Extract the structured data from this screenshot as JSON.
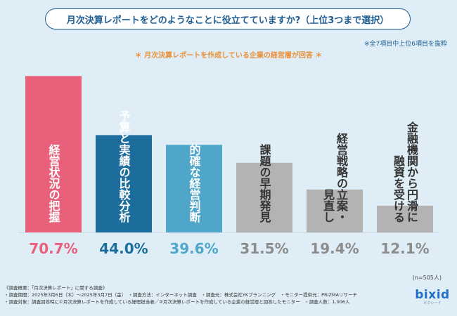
{
  "title": "月次決算レポートをどのようなことに役立てていますか?（上位3つまで選択）",
  "note_items": "※全7項目中上位6項目を抜粋",
  "note_respondents": "＊ 月次決算レポートを作成している企業の経営層が回答 ＊",
  "sample_size": "(n=505人)",
  "footer": [
    "《調査概要：「月次決算レポート」に関する調査》",
    "・調査期間：2025年3月6日（木）〜2025年3月7日（金）　・調査方法：インターネット調査　・調査元：株式会社YKプランニング　・モニター提供元：PRIZMAリサーチ",
    "・調査対象：調査回答時に①月次決算レポートを作成している経理担当者／②月次決算レポートを作成している企業の経営層と回答したモニター　・調査人数：1,006人"
  ],
  "logo": {
    "word": "bixid",
    "sub": "ビクシード"
  },
  "chart_data": {
    "type": "bar",
    "title": "月次決算レポートをどのようなことに役立てていますか?（上位3つまで選択）",
    "unit": "%",
    "ylim": [
      0,
      80
    ],
    "grid": false,
    "categories": [
      "経営状況の把握",
      "予算と実績の比較分析",
      "的確な経営判断",
      "課題の早期発見",
      "経営戦略の立案・見直し",
      "金融機関から円滑に融資を受ける"
    ],
    "category_lines": [
      [
        "経営状況の把握"
      ],
      [
        "予算と実績の比較分析"
      ],
      [
        "的確な経営判断"
      ],
      [
        "課題の早期発見"
      ],
      [
        "経営戦略の立案・",
        "見直し"
      ],
      [
        "金融機関から円滑に",
        "融資を受ける"
      ]
    ],
    "values": [
      70.7,
      44.0,
      39.6,
      31.5,
      19.4,
      12.1
    ],
    "value_labels": [
      "70.7%",
      "44.0%",
      "39.6%",
      "31.5%",
      "19.4%",
      "12.1%"
    ],
    "colors": [
      "#e8607a",
      "#1d6d9c",
      "#4fa6c9",
      "#b3b3b3",
      "#b3b3b3",
      "#b3b3b3"
    ],
    "label_colors": [
      "#e8607a",
      "#1d6d9c",
      "#4fa6c9",
      "#8c8c8c",
      "#8c8c8c",
      "#8c8c8c"
    ]
  }
}
